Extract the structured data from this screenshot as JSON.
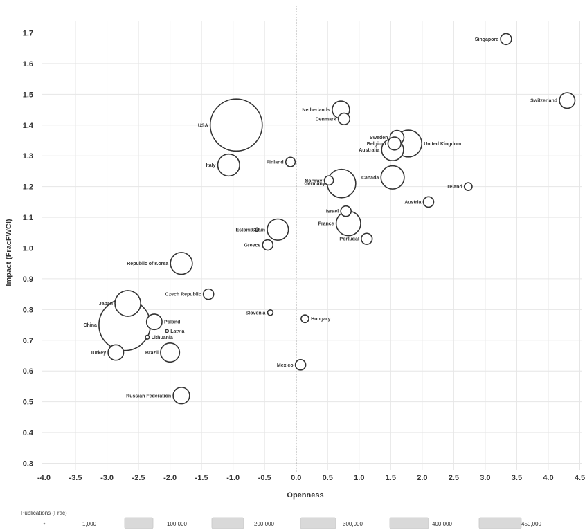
{
  "chart_data": {
    "type": "scatter",
    "xlabel": "Openness",
    "ylabel": "Impact (FracFWCI)",
    "xlim": [
      -4.0,
      4.5
    ],
    "ylim": [
      0.3,
      1.7
    ],
    "x_ticks": [
      "-4.0",
      "-3.5",
      "-3.0",
      "-2.5",
      "-2.0",
      "-1.5",
      "-1.0",
      "-0.5",
      "0.0",
      "0.5",
      "1.0",
      "1.5",
      "2.0",
      "2.5",
      "3.0",
      "3.5",
      "4.0",
      "4.5"
    ],
    "y_ticks": [
      "0.3",
      "0.4",
      "0.5",
      "0.6",
      "0.7",
      "0.8",
      "0.9",
      "1.0",
      "1.1",
      "1.2",
      "1.3",
      "1.4",
      "1.5",
      "1.6",
      "1.7"
    ],
    "reference_lines": {
      "x": 0.0,
      "y": 1.0
    },
    "grid": true,
    "bubble_size": "Publications (Frac)",
    "points": [
      {
        "label": "Singapore",
        "x": 3.33,
        "y": 1.68,
        "size": 20000
      },
      {
        "label": "Switzerland",
        "x": 4.3,
        "y": 1.48,
        "size": 40000
      },
      {
        "label": "Netherlands",
        "x": 0.71,
        "y": 1.45,
        "size": 50000
      },
      {
        "label": "Denmark",
        "x": 0.76,
        "y": 1.42,
        "size": 22000
      },
      {
        "label": "USA",
        "x": -0.95,
        "y": 1.4,
        "size": 450000
      },
      {
        "label": "Sweden",
        "x": 1.6,
        "y": 1.36,
        "size": 32000
      },
      {
        "label": "Belgium",
        "x": 1.56,
        "y": 1.34,
        "size": 28000
      },
      {
        "label": "United Kingdom",
        "x": 1.78,
        "y": 1.34,
        "size": 120000
      },
      {
        "label": "Australia",
        "x": 1.53,
        "y": 1.32,
        "size": 80000
      },
      {
        "label": "Italy",
        "x": -1.07,
        "y": 1.27,
        "size": 80000
      },
      {
        "label": "Finland",
        "x": -0.09,
        "y": 1.28,
        "size": 15000
      },
      {
        "label": "Canada",
        "x": 1.53,
        "y": 1.23,
        "size": 90000
      },
      {
        "label": "Norway",
        "x": 0.52,
        "y": 1.22,
        "size": 14000
      },
      {
        "label": "Germany",
        "x": 0.72,
        "y": 1.21,
        "size": 135000
      },
      {
        "label": "Ireland",
        "x": 2.73,
        "y": 1.2,
        "size": 10000
      },
      {
        "label": "Austria",
        "x": 2.1,
        "y": 1.15,
        "size": 18000
      },
      {
        "label": "Israel",
        "x": 0.79,
        "y": 1.12,
        "size": 18000
      },
      {
        "label": "France",
        "x": 0.83,
        "y": 1.08,
        "size": 100000
      },
      {
        "label": "Spain",
        "x": -0.29,
        "y": 1.06,
        "size": 75000
      },
      {
        "label": "Estonia",
        "x": -0.62,
        "y": 1.06,
        "size": 2000
      },
      {
        "label": "Portugal",
        "x": 1.12,
        "y": 1.03,
        "size": 20000
      },
      {
        "label": "Greece",
        "x": -0.45,
        "y": 1.01,
        "size": 18000
      },
      {
        "label": "Republic of Korea",
        "x": -1.82,
        "y": 0.95,
        "size": 80000
      },
      {
        "label": "Czech Republic",
        "x": -1.39,
        "y": 0.85,
        "size": 18000
      },
      {
        "label": "Japan",
        "x": -2.67,
        "y": 0.82,
        "size": 110000
      },
      {
        "label": "Slovenia",
        "x": -0.41,
        "y": 0.79,
        "size": 5000
      },
      {
        "label": "Hungary",
        "x": 0.14,
        "y": 0.77,
        "size": 10000
      },
      {
        "label": "China",
        "x": -2.72,
        "y": 0.75,
        "size": 440000
      },
      {
        "label": "Poland",
        "x": -2.25,
        "y": 0.76,
        "size": 40000
      },
      {
        "label": "Latvia",
        "x": -2.05,
        "y": 0.73,
        "size": 1500
      },
      {
        "label": "Lithuania",
        "x": -2.36,
        "y": 0.71,
        "size": 2500
      },
      {
        "label": "Turkey",
        "x": -2.86,
        "y": 0.66,
        "size": 40000
      },
      {
        "label": "Brazil",
        "x": -2.0,
        "y": 0.66,
        "size": 60000
      },
      {
        "label": "Mexico",
        "x": 0.07,
        "y": 0.62,
        "size": 18000
      },
      {
        "label": "Russian Federation",
        "x": -1.82,
        "y": 0.52,
        "size": 45000
      }
    ]
  },
  "legend": {
    "title": "Publications (Frac)",
    "items": [
      "1,000",
      "100,000",
      "200,000",
      "300,000",
      "400,000",
      "450,000"
    ]
  }
}
